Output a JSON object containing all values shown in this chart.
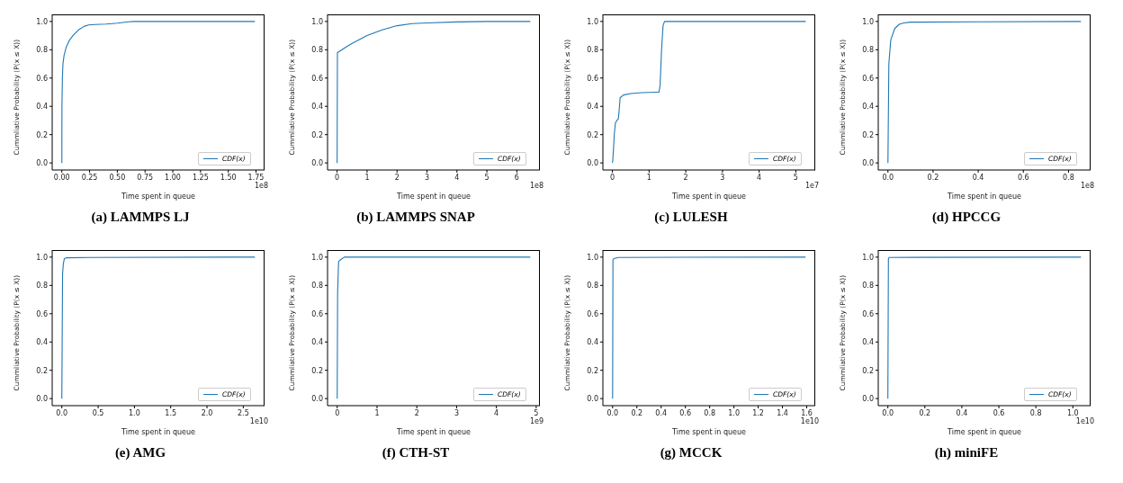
{
  "chart_data": [
    {
      "type": "line",
      "title": "(a) LAMMPS LJ",
      "xlabel": "Time spent in queue",
      "ylabel": "Cummliative Probability (P(x ≤ X))",
      "annotations": [
        "1e8"
      ],
      "legend": "bottom right",
      "marker": "none",
      "x": [
        0,
        0.001,
        0.005,
        0.01,
        0.02,
        0.04,
        0.07,
        0.1,
        0.15,
        0.2,
        0.24,
        0.3,
        0.4,
        0.5,
        0.6,
        0.65,
        1.74
      ],
      "series": [
        {
          "name": "CDF(x)",
          "color": "#1f77b4",
          "values": [
            0,
            0.4,
            0.6,
            0.7,
            0.76,
            0.82,
            0.87,
            0.9,
            0.94,
            0.965,
            0.975,
            0.978,
            0.982,
            0.988,
            0.998,
            1.0,
            1.0
          ]
        }
      ],
      "xlim": [
        -0.087,
        1.827
      ],
      "xticks": [
        {
          "value": 0,
          "label": "0.00"
        },
        {
          "value": 0.25,
          "label": "0.25"
        },
        {
          "value": 0.5,
          "label": "0.50"
        },
        {
          "value": 0.75,
          "label": "0.75"
        },
        {
          "value": 1,
          "label": "1.00"
        },
        {
          "value": 1.25,
          "label": "1.25"
        },
        {
          "value": 1.5,
          "label": "1.50"
        },
        {
          "value": 1.75,
          "label": "1.75"
        }
      ],
      "ylim": [
        -0.05,
        1.05
      ],
      "yticks": [
        {
          "value": 0,
          "label": "0.0"
        },
        {
          "value": 0.2,
          "label": "0.2"
        },
        {
          "value": 0.4,
          "label": "0.4"
        },
        {
          "value": 0.6,
          "label": "0.6"
        },
        {
          "value": 0.8,
          "label": "0.8"
        },
        {
          "value": 1,
          "label": "1.0"
        }
      ]
    },
    {
      "type": "line",
      "title": "(b) LAMMPS SNAP",
      "xlabel": "Time spent in queue",
      "ylabel": "Cummliative Probability (P(x ≤ X))",
      "annotations": [
        "1e8"
      ],
      "legend": "bottom right",
      "marker": "none",
      "x": [
        0,
        0.01,
        0.3,
        0.5,
        1,
        1.5,
        2,
        2.5,
        3,
        4,
        5,
        6.45
      ],
      "series": [
        {
          "name": "CDF(x)",
          "color": "#1f77b4",
          "values": [
            0,
            0.78,
            0.82,
            0.845,
            0.9,
            0.94,
            0.97,
            0.985,
            0.99,
            0.997,
            1.0,
            1.0
          ]
        }
      ],
      "xlim": [
        -0.32,
        6.77
      ],
      "xticks": [
        0,
        1,
        2,
        3,
        4,
        5,
        6
      ],
      "ylim": [
        -0.05,
        1.05
      ],
      "yticks": [
        {
          "value": 0,
          "label": "0.0"
        },
        {
          "value": 0.2,
          "label": "0.2"
        },
        {
          "value": 0.4,
          "label": "0.4"
        },
        {
          "value": 0.6,
          "label": "0.6"
        },
        {
          "value": 0.8,
          "label": "0.8"
        },
        {
          "value": 1,
          "label": "1.0"
        }
      ]
    },
    {
      "type": "line",
      "title": "(c) LULESH",
      "xlabel": "Time spent in queue",
      "ylabel": "Cummliative Probability (P(x ≤ X))",
      "annotations": [
        "1e7"
      ],
      "legend": "bottom right",
      "marker": "none",
      "x": [
        0,
        0.01,
        0.03,
        0.05,
        0.08,
        0.12,
        0.16,
        0.18,
        0.21,
        0.3,
        0.5,
        0.8,
        1.2,
        1.27,
        1.3,
        1.34,
        1.38,
        1.42,
        2,
        5.27
      ],
      "series": [
        {
          "name": "CDF(x)",
          "color": "#1f77b4",
          "values": [
            0,
            0.02,
            0.1,
            0.2,
            0.28,
            0.3,
            0.31,
            0.36,
            0.46,
            0.48,
            0.49,
            0.497,
            0.5,
            0.5,
            0.55,
            0.8,
            0.97,
            1.0,
            1.0,
            1.0
          ]
        }
      ],
      "xlim": [
        -0.26,
        5.53
      ],
      "xticks": [
        0,
        1,
        2,
        3,
        4,
        5
      ],
      "ylim": [
        -0.05,
        1.05
      ],
      "yticks": [
        {
          "value": 0,
          "label": "0.0"
        },
        {
          "value": 0.2,
          "label": "0.2"
        },
        {
          "value": 0.4,
          "label": "0.4"
        },
        {
          "value": 0.6,
          "label": "0.6"
        },
        {
          "value": 0.8,
          "label": "0.8"
        },
        {
          "value": 1,
          "label": "1.0"
        }
      ]
    },
    {
      "type": "line",
      "title": "(d) HPCCG",
      "xlabel": "Time spent in queue",
      "ylabel": "Cummliative Probability (P(x ≤ X))",
      "annotations": [
        "1e8"
      ],
      "legend": "bottom right",
      "marker": "none",
      "x": [
        0,
        0.004,
        0.0125,
        0.03,
        0.05,
        0.07,
        0.1,
        0.4,
        0.855
      ],
      "series": [
        {
          "name": "CDF(x)",
          "color": "#1f77b4",
          "values": [
            0,
            0.7,
            0.87,
            0.95,
            0.98,
            0.99,
            0.995,
            0.998,
            1.0
          ]
        }
      ],
      "xlim": [
        -0.043,
        0.898
      ],
      "xticks": [
        {
          "value": 0,
          "label": "0.0"
        },
        {
          "value": 0.2,
          "label": "0.2"
        },
        {
          "value": 0.4,
          "label": "0.4"
        },
        {
          "value": 0.6,
          "label": "0.6"
        },
        {
          "value": 0.8,
          "label": "0.8"
        }
      ],
      "ylim": [
        -0.05,
        1.05
      ],
      "yticks": [
        {
          "value": 0,
          "label": "0.0"
        },
        {
          "value": 0.2,
          "label": "0.2"
        },
        {
          "value": 0.4,
          "label": "0.4"
        },
        {
          "value": 0.6,
          "label": "0.6"
        },
        {
          "value": 0.8,
          "label": "0.8"
        },
        {
          "value": 1,
          "label": "1.0"
        }
      ]
    },
    {
      "type": "line",
      "title": "(e) AMG",
      "xlabel": "Time spent in queue",
      "ylabel": "Cummliative Probability (P(x ≤ X))",
      "annotations": [
        "1e10"
      ],
      "legend": "bottom right",
      "marker": "none",
      "x": [
        0,
        0.01,
        0.02,
        0.035,
        0.06,
        0.4,
        2.66
      ],
      "series": [
        {
          "name": "CDF(x)",
          "color": "#1f77b4",
          "values": [
            0,
            0.88,
            0.95,
            0.99,
            0.995,
            0.998,
            1.0
          ]
        }
      ],
      "xlim": [
        -0.133,
        2.793
      ],
      "xticks": [
        {
          "value": 0,
          "label": "0.0"
        },
        {
          "value": 0.5,
          "label": "0.5"
        },
        {
          "value": 1,
          "label": "1.0"
        },
        {
          "value": 1.5,
          "label": "1.5"
        },
        {
          "value": 2,
          "label": "2.0"
        },
        {
          "value": 2.5,
          "label": "2.5"
        }
      ],
      "ylim": [
        -0.05,
        1.05
      ],
      "yticks": [
        {
          "value": 0,
          "label": "0.0"
        },
        {
          "value": 0.2,
          "label": "0.2"
        },
        {
          "value": 0.4,
          "label": "0.4"
        },
        {
          "value": 0.6,
          "label": "0.6"
        },
        {
          "value": 0.8,
          "label": "0.8"
        },
        {
          "value": 1,
          "label": "1.0"
        }
      ]
    },
    {
      "type": "line",
      "title": "(f) CTH-ST",
      "xlabel": "Time spent in queue",
      "ylabel": "Cummliative Probability (P(x ≤ X))",
      "annotations": [
        "1e9"
      ],
      "legend": "bottom right",
      "marker": "none",
      "x": [
        0,
        0.01,
        0.035,
        0.1,
        0.18,
        4.85
      ],
      "series": [
        {
          "name": "CDF(x)",
          "color": "#1f77b4",
          "values": [
            0,
            0.75,
            0.97,
            0.985,
            1.0,
            1.0
          ]
        }
      ],
      "xlim": [
        -0.243,
        5.093
      ],
      "xticks": [
        0,
        1,
        2,
        3,
        4,
        5
      ],
      "ylim": [
        -0.05,
        1.05
      ],
      "yticks": [
        {
          "value": 0,
          "label": "0.0"
        },
        {
          "value": 0.2,
          "label": "0.2"
        },
        {
          "value": 0.4,
          "label": "0.4"
        },
        {
          "value": 0.6,
          "label": "0.6"
        },
        {
          "value": 0.8,
          "label": "0.8"
        },
        {
          "value": 1,
          "label": "1.0"
        }
      ]
    },
    {
      "type": "line",
      "title": "(g) MCCK",
      "xlabel": "Time spent in queue",
      "ylabel": "Cummliative Probability (P(x ≤ X))",
      "annotations": [
        "1e10"
      ],
      "legend": "bottom right",
      "marker": "none",
      "x": [
        0,
        0.003,
        0.01,
        0.05,
        1.59
      ],
      "series": [
        {
          "name": "CDF(x)",
          "color": "#1f77b4",
          "values": [
            0,
            0.98,
            0.99,
            0.998,
            1.0
          ]
        }
      ],
      "xlim": [
        -0.08,
        1.67
      ],
      "xticks": [
        {
          "value": 0,
          "label": "0.0"
        },
        {
          "value": 0.2,
          "label": "0.2"
        },
        {
          "value": 0.4,
          "label": "0.4"
        },
        {
          "value": 0.6,
          "label": "0.6"
        },
        {
          "value": 0.8,
          "label": "0.8"
        },
        {
          "value": 1,
          "label": "1.0"
        },
        {
          "value": 1.2,
          "label": "1.2"
        },
        {
          "value": 1.4,
          "label": "1.4"
        },
        {
          "value": 1.6,
          "label": "1.6"
        }
      ],
      "ylim": [
        -0.05,
        1.05
      ],
      "yticks": [
        {
          "value": 0,
          "label": "0.0"
        },
        {
          "value": 0.2,
          "label": "0.2"
        },
        {
          "value": 0.4,
          "label": "0.4"
        },
        {
          "value": 0.6,
          "label": "0.6"
        },
        {
          "value": 0.8,
          "label": "0.8"
        },
        {
          "value": 1,
          "label": "1.0"
        }
      ]
    },
    {
      "type": "line",
      "title": "(h) miniFE",
      "xlabel": "Time spent in queue",
      "ylabel": "Cummliative Probability (P(x ≤ X))",
      "annotations": [
        "1e10"
      ],
      "legend": "bottom right",
      "marker": "none",
      "x": [
        0,
        0.003,
        0.008,
        1.044
      ],
      "series": [
        {
          "name": "CDF(x)",
          "color": "#1f77b4",
          "values": [
            0,
            0.99,
            0.998,
            1.0
          ]
        }
      ],
      "xlim": [
        -0.052,
        1.096
      ],
      "xticks": [
        {
          "value": 0,
          "label": "0.0"
        },
        {
          "value": 0.2,
          "label": "0.2"
        },
        {
          "value": 0.4,
          "label": "0.4"
        },
        {
          "value": 0.6,
          "label": "0.6"
        },
        {
          "value": 0.8,
          "label": "0.8"
        },
        {
          "value": 1,
          "label": "1.0"
        }
      ],
      "ylim": [
        -0.05,
        1.05
      ],
      "yticks": [
        {
          "value": 0,
          "label": "0.0"
        },
        {
          "value": 0.2,
          "label": "0.2"
        },
        {
          "value": 0.4,
          "label": "0.4"
        },
        {
          "value": 0.6,
          "label": "0.6"
        },
        {
          "value": 0.8,
          "label": "0.8"
        },
        {
          "value": 1,
          "label": "1.0"
        }
      ]
    }
  ]
}
